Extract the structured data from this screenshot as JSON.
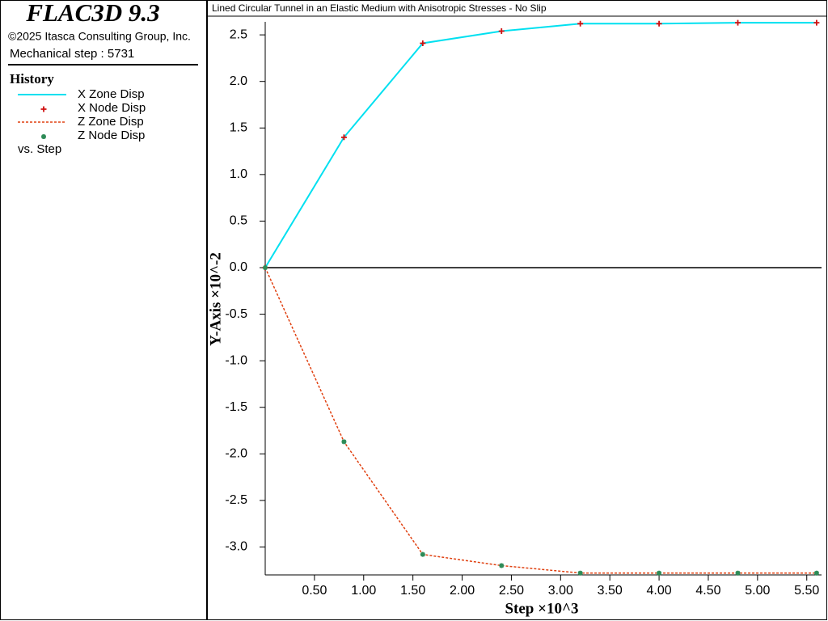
{
  "header": {
    "product": "FLAC3D 9.3",
    "copyright": "©2025 Itasca Consulting Group, Inc.",
    "step_label": "Mechanical step : 5731"
  },
  "chart_data": {
    "type": "line",
    "title": "Lined Circular Tunnel in an Elastic Medium with Anisotropic Stresses - No Slip",
    "legend_title": "History",
    "legend_note": "vs. Step",
    "x_label": "Step ×10^3",
    "y_label": "Y-Axis ×10^-2",
    "x": [
      0,
      0.8,
      1.6,
      2.4,
      3.2,
      4.0,
      4.8,
      5.6
    ],
    "series": [
      {
        "name": "X Zone Disp",
        "color": "#00e0f0",
        "style": "line",
        "values": [
          0,
          1.4,
          2.41,
          2.54,
          2.62,
          2.62,
          2.63,
          2.63
        ]
      },
      {
        "name": "X Node Disp",
        "color": "#d01010",
        "style": "plus",
        "values": [
          0,
          1.4,
          2.41,
          2.54,
          2.62,
          2.62,
          2.63,
          2.63
        ]
      },
      {
        "name": "Z Zone Disp",
        "color": "#e04010",
        "style": "dashed",
        "values": [
          0,
          -1.87,
          -3.08,
          -3.2,
          -3.28,
          -3.28,
          -3.28,
          -3.28
        ]
      },
      {
        "name": "Z Node Disp",
        "color": "#2e8b57",
        "style": "star",
        "values": [
          0,
          -1.87,
          -3.08,
          -3.2,
          -3.28,
          -3.28,
          -3.28,
          -3.28
        ]
      }
    ],
    "xlim": [
      0,
      5.65
    ],
    "ylim": [
      -3.3,
      2.64
    ],
    "xticks": [
      {
        "value": 0.5,
        "label": "0.50"
      },
      {
        "value": 1,
        "label": "1.00"
      },
      {
        "value": 1.5,
        "label": "1.50"
      },
      {
        "value": 2,
        "label": "2.00"
      },
      {
        "value": 2.5,
        "label": "2.50"
      },
      {
        "value": 3,
        "label": "3.00"
      },
      {
        "value": 3.5,
        "label": "3.50"
      },
      {
        "value": 4,
        "label": "4.00"
      },
      {
        "value": 4.5,
        "label": "4.50"
      },
      {
        "value": 5,
        "label": "5.00"
      },
      {
        "value": 5.5,
        "label": "5.50"
      }
    ],
    "yticks": [
      2.5,
      {
        "value": 2,
        "label": "2.0"
      },
      1.5,
      {
        "value": 1,
        "label": "1.0"
      },
      0.5,
      {
        "value": 0,
        "label": "0.0"
      },
      -0.5,
      {
        "value": -1,
        "label": "-1.0"
      },
      -1.5,
      {
        "value": -2,
        "label": "-2.0"
      },
      -2.5,
      {
        "value": -3,
        "label": "-3.0"
      }
    ],
    "zero_line": true
  }
}
